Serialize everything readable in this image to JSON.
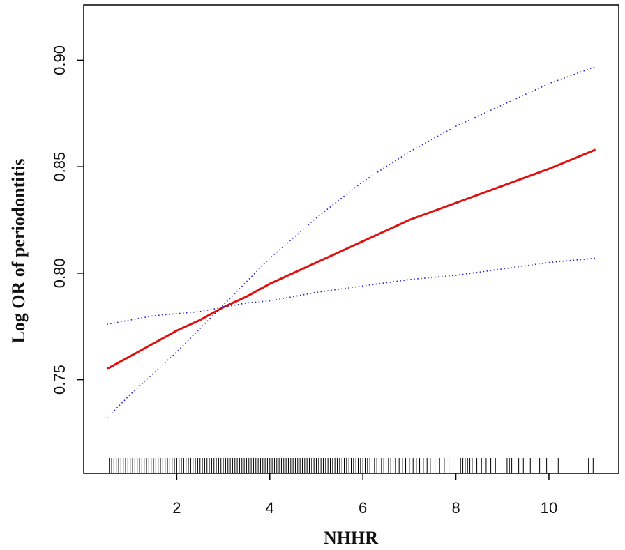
{
  "chart_data": {
    "type": "line",
    "title": "",
    "xlabel": "NHHR",
    "ylabel": "Log OR of periodontitis",
    "xlim": [
      0.0,
      11.5
    ],
    "ylim": [
      0.706,
      0.926
    ],
    "x_ticks": [
      2,
      4,
      6,
      8,
      10
    ],
    "x_tick_labels": [
      "2",
      "4",
      "6",
      "8",
      "10"
    ],
    "y_ticks": [
      0.75,
      0.8,
      0.85,
      0.9
    ],
    "y_tick_labels": [
      "0.75",
      "0.80",
      "0.85",
      "0.90"
    ],
    "grid": false,
    "legend": "none",
    "series": [
      {
        "role": "estimate",
        "style": "solid",
        "color": "#e01010",
        "x": [
          0.5,
          1.0,
          1.5,
          2.0,
          2.5,
          3.0,
          3.5,
          4.0,
          5.0,
          6.0,
          7.0,
          8.0,
          9.0,
          10.0,
          11.0
        ],
        "y": [
          0.755,
          0.761,
          0.767,
          0.773,
          0.778,
          0.784,
          0.789,
          0.795,
          0.805,
          0.815,
          0.825,
          0.833,
          0.841,
          0.849,
          0.858
        ]
      },
      {
        "role": "upper-ci",
        "style": "dotted",
        "color": "#2020d0",
        "x": [
          0.5,
          1.0,
          1.5,
          2.0,
          2.5,
          3.0,
          3.5,
          4.0,
          5.0,
          6.0,
          7.0,
          8.0,
          9.0,
          10.0,
          11.0
        ],
        "y": [
          0.732,
          0.743,
          0.753,
          0.763,
          0.774,
          0.785,
          0.796,
          0.807,
          0.826,
          0.843,
          0.857,
          0.869,
          0.879,
          0.889,
          0.897
        ]
      },
      {
        "role": "lower-ci",
        "style": "dotted",
        "color": "#2020d0",
        "x": [
          0.5,
          1.0,
          1.5,
          2.0,
          2.5,
          3.0,
          3.5,
          4.0,
          5.0,
          6.0,
          7.0,
          8.0,
          9.0,
          10.0,
          11.0
        ],
        "y": [
          0.776,
          0.778,
          0.78,
          0.781,
          0.782,
          0.784,
          0.786,
          0.787,
          0.791,
          0.794,
          0.797,
          0.799,
          0.802,
          0.805,
          0.807
        ]
      }
    ],
    "rug": [
      0.55,
      0.6,
      0.65,
      0.7,
      0.75,
      0.8,
      0.85,
      0.9,
      0.95,
      1.0,
      1.05,
      1.1,
      1.15,
      1.2,
      1.25,
      1.3,
      1.35,
      1.4,
      1.45,
      1.5,
      1.55,
      1.6,
      1.65,
      1.7,
      1.75,
      1.8,
      1.85,
      1.9,
      1.95,
      2.0,
      2.05,
      2.1,
      2.15,
      2.2,
      2.25,
      2.3,
      2.35,
      2.4,
      2.45,
      2.5,
      2.55,
      2.6,
      2.65,
      2.7,
      2.75,
      2.8,
      2.85,
      2.9,
      2.95,
      3.0,
      3.05,
      3.1,
      3.15,
      3.2,
      3.25,
      3.3,
      3.35,
      3.4,
      3.45,
      3.5,
      3.55,
      3.6,
      3.65,
      3.7,
      3.75,
      3.8,
      3.85,
      3.9,
      3.95,
      4.0,
      4.05,
      4.1,
      4.15,
      4.2,
      4.25,
      4.3,
      4.35,
      4.4,
      4.45,
      4.5,
      4.55,
      4.6,
      4.65,
      4.7,
      4.75,
      4.8,
      4.85,
      4.9,
      4.95,
      5.0,
      5.05,
      5.1,
      5.15,
      5.2,
      5.25,
      5.3,
      5.35,
      5.4,
      5.45,
      5.5,
      5.55,
      5.6,
      5.65,
      5.7,
      5.75,
      5.8,
      5.85,
      5.9,
      5.95,
      6.0,
      6.05,
      6.1,
      6.15,
      6.2,
      6.25,
      6.3,
      6.35,
      6.4,
      6.45,
      6.5,
      6.55,
      6.6,
      6.65,
      6.7,
      6.78,
      6.85,
      6.92,
      7.0,
      7.08,
      7.15,
      7.22,
      7.3,
      7.38,
      7.45,
      7.55,
      7.65,
      7.75,
      7.85,
      8.1,
      8.15,
      8.2,
      8.25,
      8.3,
      8.35,
      8.45,
      8.55,
      8.65,
      8.75,
      8.85,
      9.1,
      9.15,
      9.2,
      9.35,
      9.45,
      9.6,
      9.8,
      9.95,
      10.2,
      10.85,
      10.95
    ]
  }
}
